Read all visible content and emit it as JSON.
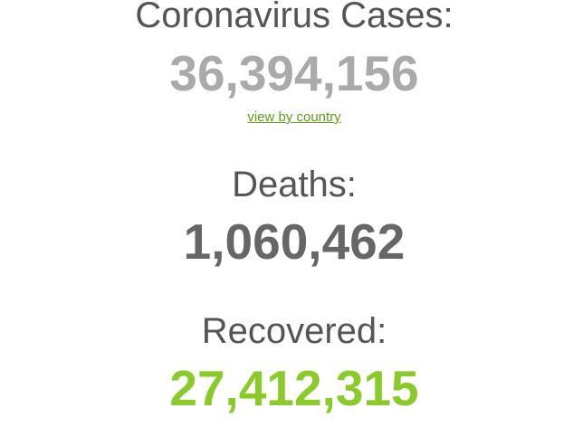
{
  "cases": {
    "label": "Coronavirus Cases:",
    "value": "36,394,156",
    "link": "view by country"
  },
  "deaths": {
    "label": "Deaths:",
    "value": "1,060,462"
  },
  "recovered": {
    "label": "Recovered:",
    "value": "27,412,315"
  },
  "colors": {
    "cases": "#aaaaaa",
    "deaths": "#666666",
    "recovered": "#8acb2b",
    "link": "#609b1a",
    "heading": "#555555"
  }
}
